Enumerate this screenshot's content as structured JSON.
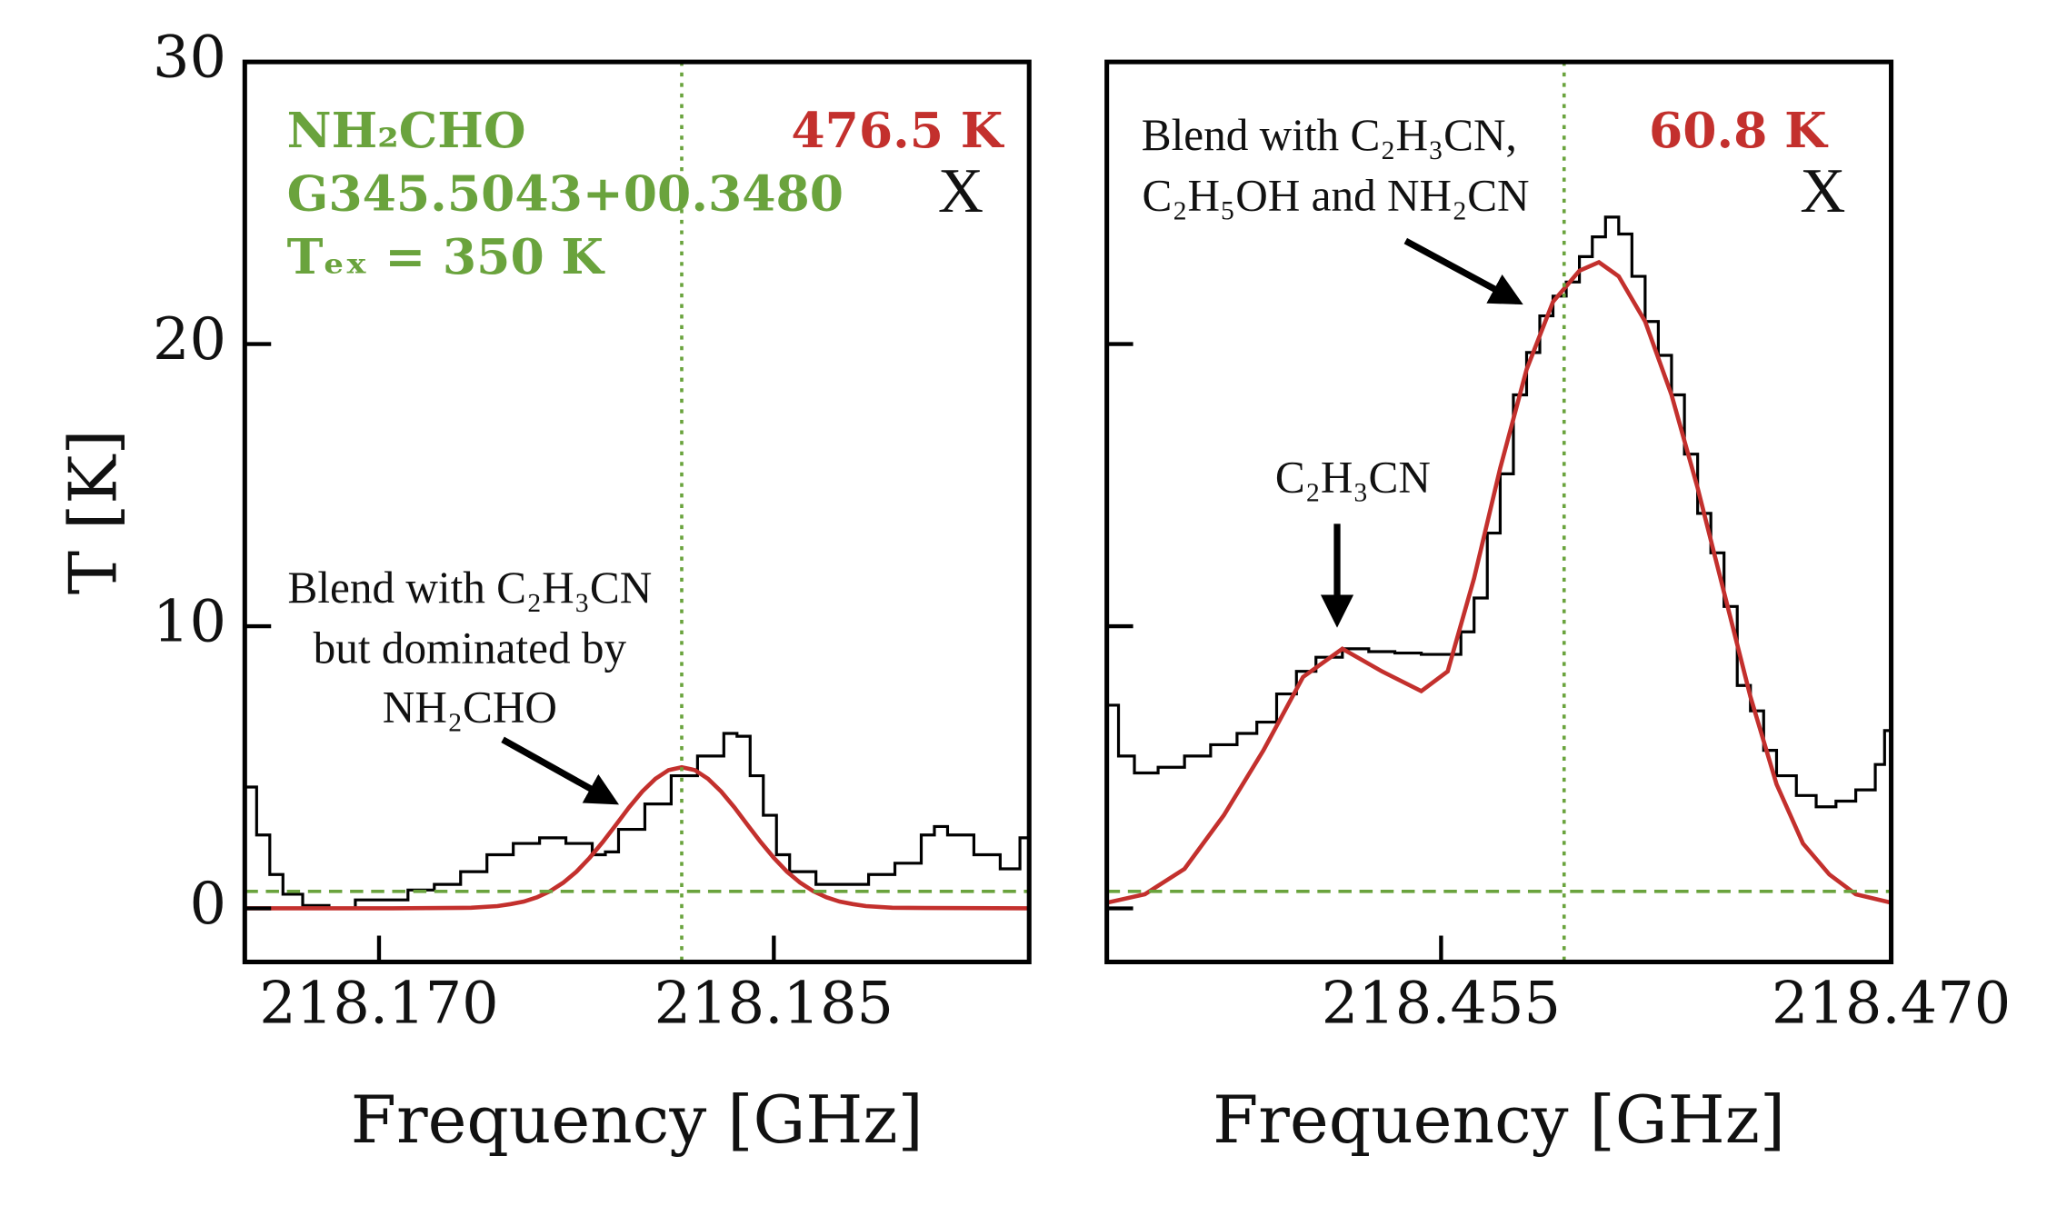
{
  "chart_data": [
    {
      "type": "line",
      "xlabel": "Frequency [GHz]",
      "ylabel": "T [K]",
      "xlim": [
        218.1649,
        218.1947
      ],
      "ylim": [
        -1.9,
        30
      ],
      "xticks": [
        {
          "value": 218.17,
          "label": "218.170"
        },
        {
          "value": 218.185,
          "label": "218.185"
        }
      ],
      "yticks": [
        0,
        10,
        20,
        30
      ],
      "ytick_labels": true,
      "vline": {
        "value": 218.1815,
        "color": "#6aa33d"
      },
      "hline": {
        "value": 0.6,
        "color": "#6aa33d"
      },
      "annotations": [
        "NH₂CHO",
        "G345.5043+00.3480",
        "Tₑₓ = 350 K",
        "476.5 K",
        "X",
        "Blend with C₂H₃CN",
        "but dominated by",
        "NH₂CHO"
      ],
      "series": [
        {
          "color": "#000000",
          "step": true,
          "x": [
            218.1649,
            218.16535,
            218.16585,
            218.16635,
            218.1671,
            218.1681,
            218.1691,
            218.1701,
            218.1711,
            218.1721,
            218.1731,
            218.1741,
            218.1751,
            218.1761,
            218.1771,
            218.1781,
            218.1786,
            218.1791,
            218.1801,
            218.1811,
            218.1821,
            218.1831,
            218.1836,
            218.1841,
            218.1846,
            218.1851,
            218.1856,
            218.1866,
            218.1876,
            218.1886,
            218.1896,
            218.1906,
            218.1911,
            218.1916,
            218.1926,
            218.1936,
            218.19435
          ],
          "values": [
            4.3,
            2.6,
            1.2,
            0.5,
            0.1,
            0,
            0.3,
            0.3,
            0.65,
            0.85,
            1.3,
            1.9,
            2.3,
            2.5,
            2.3,
            1.9,
            2.0,
            2.8,
            3.7,
            4.7,
            5.4,
            6.2,
            6.1,
            4.7,
            3.3,
            1.9,
            1.3,
            0.85,
            0.85,
            1.2,
            1.6,
            2.6,
            2.9,
            2.6,
            1.9,
            1.4,
            2.5
          ]
        },
        {
          "color": "#c3302d",
          "step": false,
          "x": [
            218.1649,
            218.1705,
            218.1735,
            218.1745,
            218.175,
            218.1755,
            218.176,
            218.1765,
            218.177,
            218.1775,
            218.178,
            218.1785,
            218.179,
            218.1795,
            218.18,
            218.1805,
            218.181,
            218.1815,
            218.182,
            218.1825,
            218.183,
            218.1835,
            218.184,
            218.1845,
            218.185,
            218.1855,
            218.186,
            218.1865,
            218.187,
            218.1875,
            218.188,
            218.1885,
            218.1895,
            218.1947
          ],
          "values": [
            0,
            0,
            0.02,
            0.08,
            0.15,
            0.24,
            0.39,
            0.61,
            0.91,
            1.3,
            1.79,
            2.35,
            2.96,
            3.58,
            4.14,
            4.59,
            4.9,
            5.0,
            4.9,
            4.59,
            4.14,
            3.58,
            2.96,
            2.35,
            1.79,
            1.3,
            0.91,
            0.61,
            0.39,
            0.24,
            0.15,
            0.08,
            0.02,
            0
          ]
        }
      ]
    },
    {
      "type": "line",
      "xlabel": "Frequency [GHz]",
      "xlim": [
        218.44386,
        218.47
      ],
      "ylim": [
        -1.9,
        30
      ],
      "xticks": [
        {
          "value": 218.455,
          "label": "218.455"
        },
        {
          "value": 218.47,
          "label": "218.470"
        }
      ],
      "yticks": [
        0,
        10,
        20,
        30
      ],
      "ytick_labels": false,
      "vline": {
        "value": 218.4591,
        "color": "#6aa33d"
      },
      "hline": {
        "value": 0.6,
        "color": "#6aa33d"
      },
      "annotations": [
        "Blend with C₂H₃CN,",
        "C₂H₅OH and NH₂CN",
        "60.8 K",
        "X",
        "C₂H₃CN"
      ],
      "series": [
        {
          "color": "#000000",
          "step": true,
          "x": [
            218.44386,
            218.44425,
            218.44478,
            218.44557,
            218.44645,
            218.44732,
            218.4482,
            218.44886,
            218.44952,
            218.45018,
            218.45083,
            218.45171,
            218.45259,
            218.45346,
            218.45434,
            218.45522,
            218.45566,
            218.4561,
            218.45654,
            218.45697,
            218.45741,
            218.45785,
            218.45829,
            218.45873,
            218.45917,
            218.45961,
            218.46004,
            218.46048,
            218.46092,
            218.46136,
            218.4618,
            218.46224,
            218.46268,
            218.46311,
            218.46355,
            218.46399,
            218.46443,
            218.46487,
            218.46531,
            218.46575,
            218.46618,
            218.46684,
            218.4675,
            218.46816,
            218.46882,
            218.46947,
            218.46978
          ],
          "values": [
            7.2,
            5.4,
            4.8,
            5.0,
            5.4,
            5.8,
            6.2,
            6.6,
            7.6,
            8.4,
            8.9,
            9.2,
            9.1,
            9.05,
            9.0,
            9.0,
            9.8,
            11,
            13.3,
            15.4,
            18.2,
            19.7,
            21.0,
            21.7,
            22.2,
            23.1,
            23.8,
            24.5,
            23.9,
            22.4,
            20.8,
            19.6,
            18.2,
            16.1,
            14.0,
            12.6,
            10.7,
            7.9,
            7.0,
            5.6,
            4.7,
            4.0,
            3.6,
            3.8,
            4.2,
            5.1,
            6.3
          ]
        },
        {
          "color": "#c3302d",
          "step": false,
          "x": [
            218.44386,
            218.44513,
            218.44645,
            218.44776,
            218.44908,
            218.4504,
            218.45171,
            218.45303,
            218.45434,
            218.45522,
            218.4561,
            218.45697,
            218.45785,
            218.45873,
            218.45961,
            218.46026,
            218.46092,
            218.4618,
            218.46268,
            218.46355,
            218.46443,
            218.46531,
            218.46618,
            218.46706,
            218.46794,
            218.46882,
            218.47
          ],
          "values": [
            0.2,
            0.5,
            1.4,
            3.3,
            5.6,
            8.2,
            9.2,
            8.4,
            7.7,
            8.4,
            11.7,
            15.6,
            19.1,
            21.5,
            22.6,
            22.9,
            22.4,
            20.8,
            18.2,
            14.9,
            11.2,
            7.5,
            4.4,
            2.3,
            1.2,
            0.5,
            0.2
          ]
        }
      ]
    }
  ]
}
